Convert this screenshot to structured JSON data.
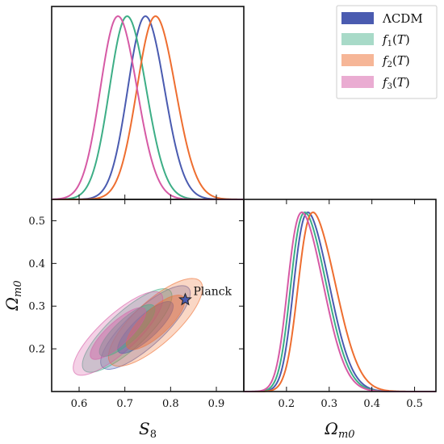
{
  "chart_data": {
    "type": "triangle",
    "panels": {
      "s8_marginal": {
        "xlim": [
          0.54,
          0.96
        ]
      },
      "omega_marginal": {
        "xlim": [
          0.1,
          0.55
        ],
        "xticks": [
          0.2,
          0.3,
          0.4,
          0.5
        ],
        "xtick_labels": [
          "0.2",
          "0.3",
          "0.4",
          "0.5"
        ],
        "xlabel": "Ω_m0"
      },
      "joint": {
        "xlim": [
          0.54,
          0.96
        ],
        "ylim": [
          0.1,
          0.55
        ],
        "xticks": [
          0.6,
          0.7,
          0.8,
          0.9
        ],
        "xtick_labels": [
          "0.6",
          "0.7",
          "0.8",
          "0.9"
        ],
        "yticks": [
          0.2,
          0.3,
          0.4,
          0.5
        ],
        "ytick_labels": [
          "0.2",
          "0.3",
          "0.4",
          "0.5"
        ],
        "xlabel": "S_8",
        "ylabel": "Ω_m0"
      }
    },
    "series": [
      {
        "name": "ΛCDM",
        "color": "#4a5bb0",
        "s8_mean": 0.745,
        "s8_sd": 0.04,
        "om_mean": 0.25,
        "om_sd": 0.04,
        "corr": 0.82
      },
      {
        "name": "f1(T)",
        "color": "#3dae86",
        "s8_mean": 0.705,
        "s8_sd": 0.04,
        "om_mean": 0.243,
        "om_sd": 0.04,
        "corr": 0.82
      },
      {
        "name": "f2(T)",
        "color": "#ee6e30",
        "s8_mean": 0.767,
        "s8_sd": 0.042,
        "om_mean": 0.262,
        "om_sd": 0.042,
        "corr": 0.78
      },
      {
        "name": "f3(T)",
        "color": "#d65aa5",
        "s8_mean": 0.685,
        "s8_sd": 0.04,
        "om_mean": 0.236,
        "om_sd": 0.04,
        "corr": 0.82
      }
    ],
    "annotation": {
      "label": "Planck",
      "s8": 0.832,
      "om": 0.315
    },
    "legend_position": "top-right"
  },
  "legend": {
    "items": [
      {
        "label": "ΛCDM",
        "color": "#4a5bb0"
      },
      {
        "label": "f1(T)",
        "color": "#3dae86"
      },
      {
        "label": "f2(T)",
        "color": "#ee6e30"
      },
      {
        "label": "f3(T)",
        "color": "#d65aa5"
      }
    ]
  }
}
